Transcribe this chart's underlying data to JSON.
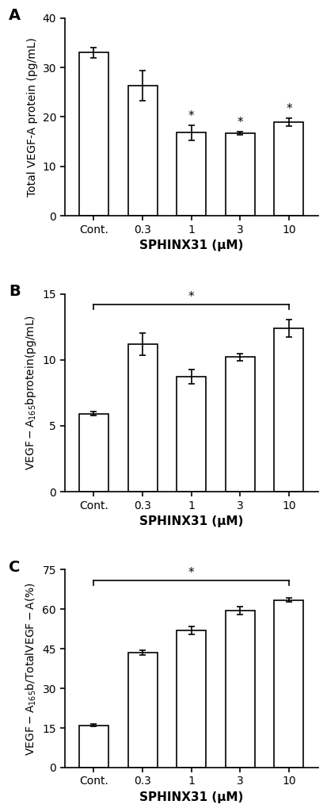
{
  "categories": [
    "Cont.",
    "0.3",
    "1",
    "3",
    "10"
  ],
  "xlabel": "SPHINX31 (μM)",
  "panel_A": {
    "label": "A",
    "values": [
      33.0,
      26.3,
      16.8,
      16.7,
      19.0
    ],
    "errors": [
      1.0,
      3.0,
      1.5,
      0.3,
      0.8
    ],
    "ylabel": "Total VEGF-A protein (pg/mL)",
    "ylabel_parts": null,
    "ylim": [
      0,
      40
    ],
    "yticks": [
      0,
      10,
      20,
      30,
      40
    ],
    "significance": [
      false,
      false,
      true,
      true,
      true
    ],
    "bracket": null
  },
  "panel_B": {
    "label": "B",
    "values": [
      5.9,
      11.2,
      8.7,
      10.2,
      12.4
    ],
    "errors": [
      0.15,
      0.85,
      0.55,
      0.25,
      0.65
    ],
    "ylabel": "VEGF-A165b protein (pg/mL)",
    "ylabel_parts": [
      "VEGF-A",
      "165",
      "b protein (pg/mL)"
    ],
    "ylim": [
      0,
      15
    ],
    "yticks": [
      0,
      5,
      10,
      15
    ],
    "significance": [
      false,
      false,
      false,
      false,
      false
    ],
    "bracket": {
      "from_idx": 0,
      "to_idx": 4,
      "text": "*",
      "y": 14.2
    }
  },
  "panel_C": {
    "label": "C",
    "values": [
      16.0,
      43.5,
      52.0,
      59.5,
      63.5
    ],
    "errors": [
      0.5,
      1.0,
      1.5,
      1.5,
      0.8
    ],
    "ylabel": "VEGF-A165b/ Total VEGF-A (%)",
    "ylabel_parts": [
      "VEGF-A",
      "165",
      "b/ Total VEGF-A (%)"
    ],
    "ylim": [
      0,
      75
    ],
    "yticks": [
      0,
      15,
      30,
      45,
      60,
      75
    ],
    "significance": [
      false,
      false,
      false,
      false,
      false
    ],
    "bracket": {
      "from_idx": 0,
      "to_idx": 4,
      "text": "*",
      "y": 71.0
    }
  },
  "bar_color": "white",
  "bar_edgecolor": "black",
  "bar_linewidth": 1.2,
  "bar_width": 0.6,
  "star_fontsize": 11,
  "tick_fontsize": 10,
  "xlabel_fontsize": 11,
  "ylabel_fontsize": 10,
  "panel_label_fontsize": 14
}
